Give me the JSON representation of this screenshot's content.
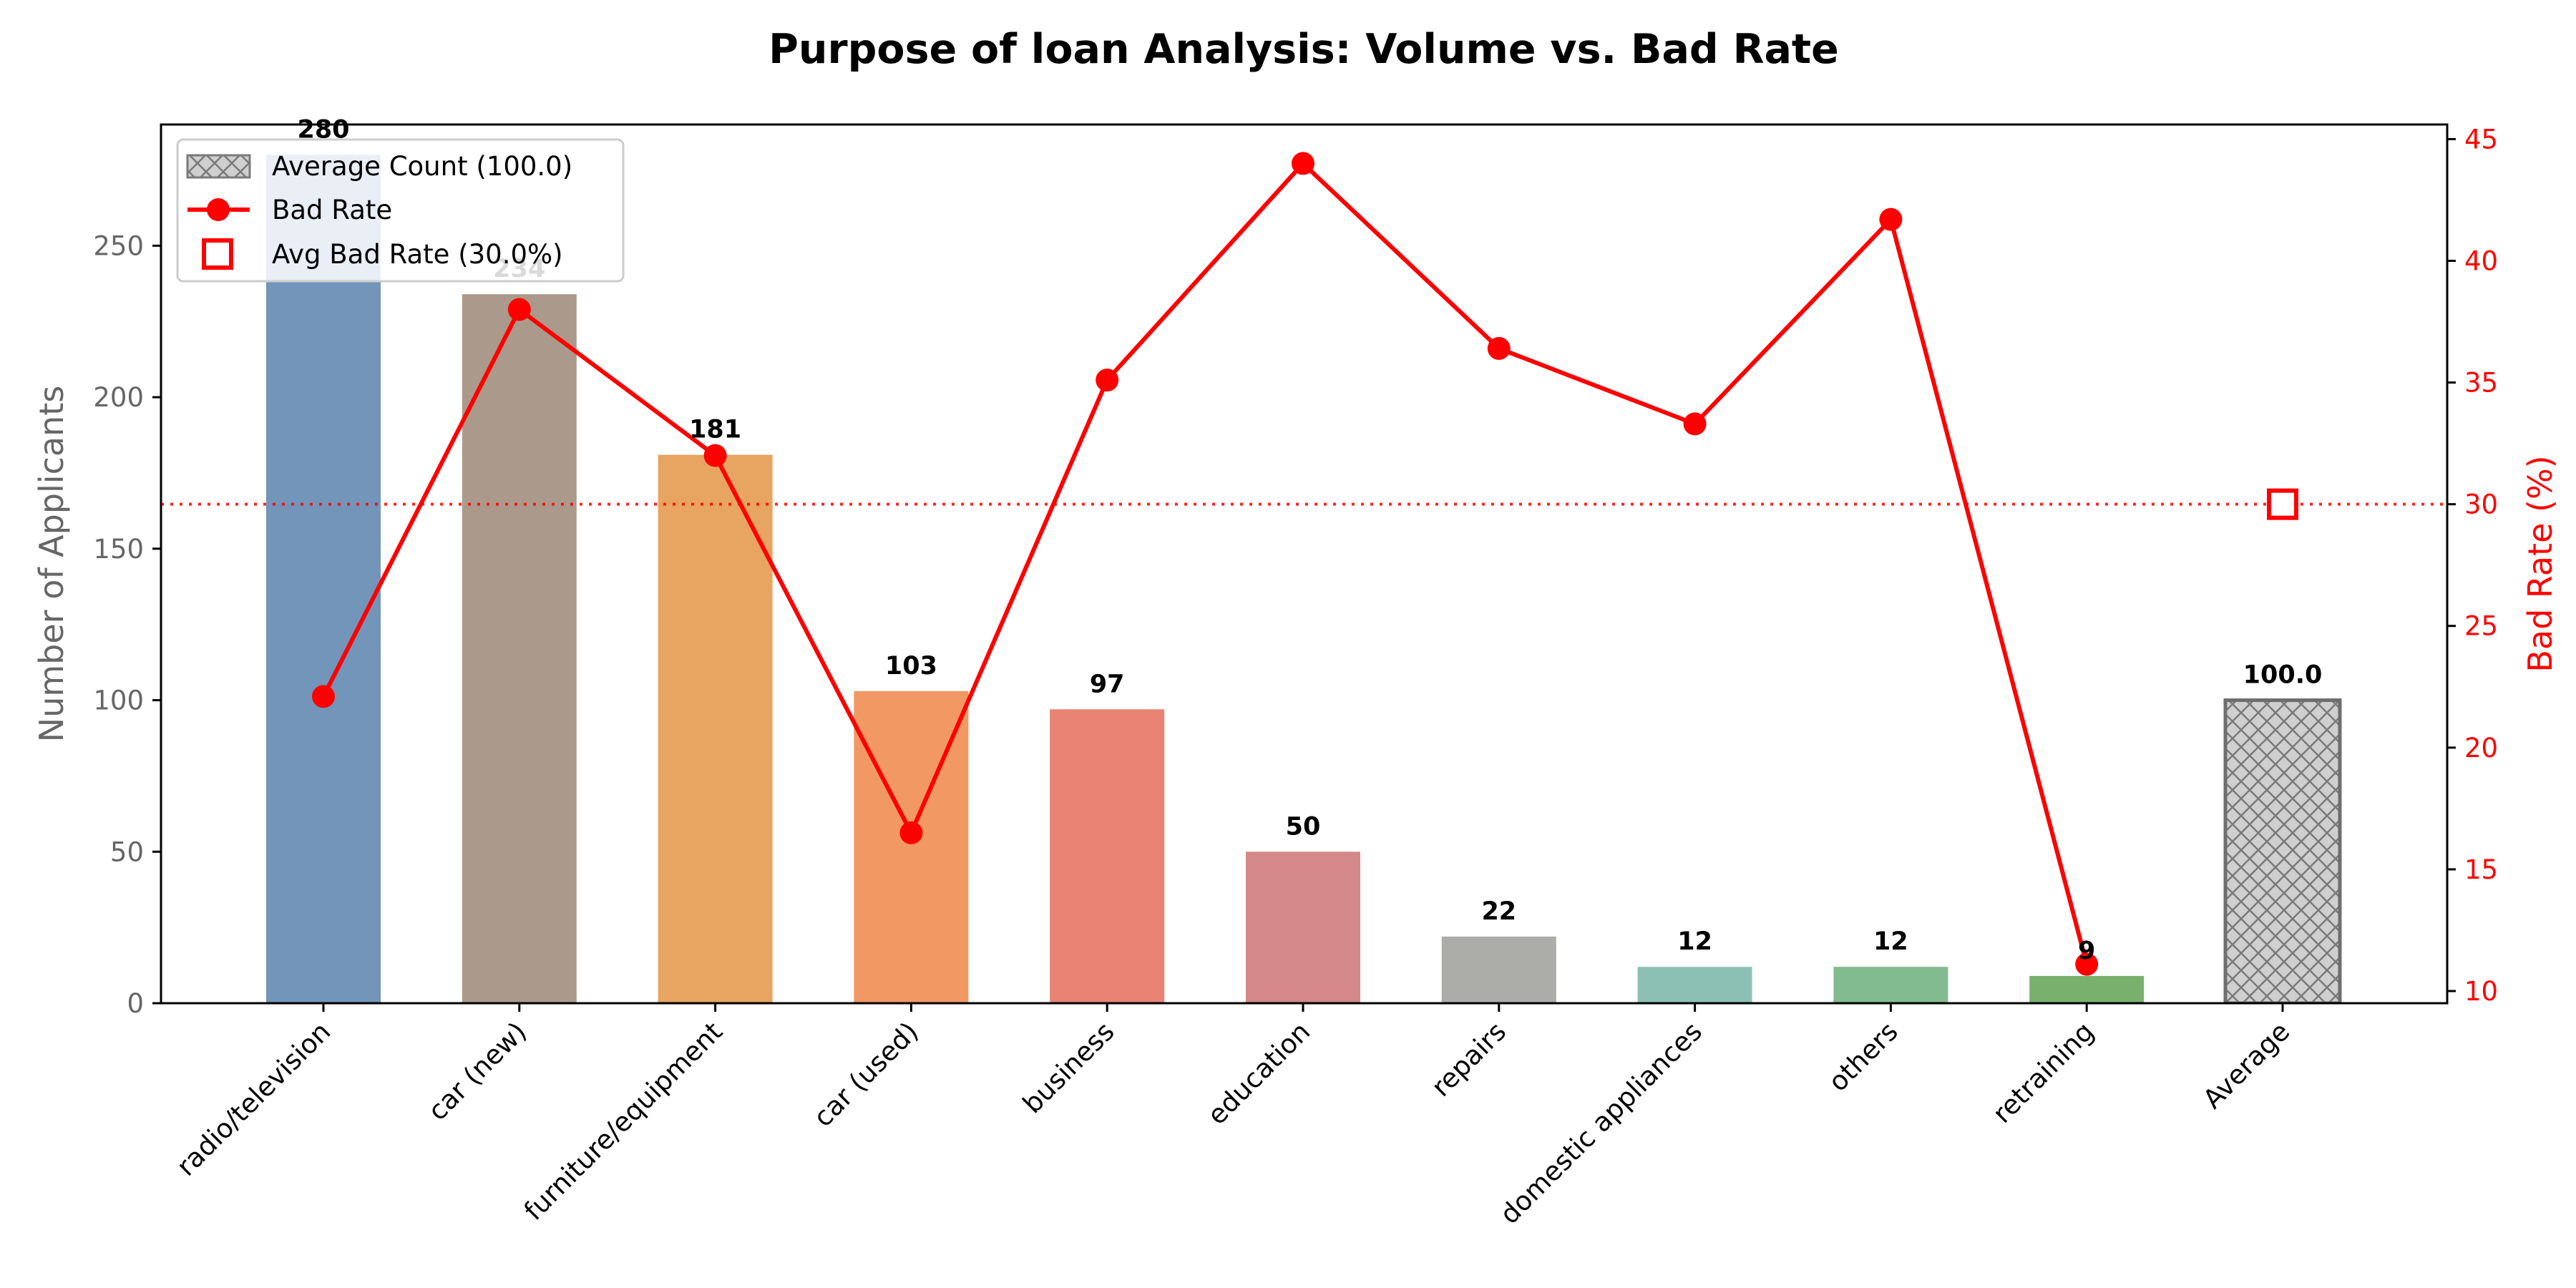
{
  "chart_data": {
    "type": "bar",
    "title": "Purpose of loan Analysis: Volume vs. Bad Rate",
    "ylabel": "Number of Applicants",
    "y2label": "Bad Rate (%)",
    "categories": [
      "radio/television",
      "car (new)",
      "furniture/equipment",
      "car (used)",
      "business",
      "education",
      "repairs",
      "domestic appliances",
      "others",
      "retraining",
      "Average"
    ],
    "series": [
      {
        "name": "Number of Applicants",
        "type": "bar",
        "axis": "left",
        "values": [
          280,
          234,
          181,
          103,
          97,
          50,
          22,
          12,
          12,
          9,
          100.0
        ],
        "labels": [
          "280",
          "234",
          "181",
          "103",
          "97",
          "50",
          "22",
          "12",
          "12",
          "9",
          "100.0"
        ],
        "colors": [
          "#7295b9",
          "#ab9a8b",
          "#e8a461",
          "#f29863",
          "#e88273",
          "#d48888",
          "#acaca8",
          "#8dc0b5",
          "#82bb90",
          "#79b06e",
          "#cfcfcf"
        ]
      },
      {
        "name": "Bad Rate",
        "type": "line",
        "axis": "right",
        "color": "#ff0000",
        "x": [
          "radio/television",
          "car (new)",
          "furniture/equipment",
          "car (used)",
          "business",
          "education",
          "repairs",
          "domestic appliances",
          "others",
          "retraining"
        ],
        "values": [
          22.1,
          38.0,
          32.0,
          16.5,
          35.1,
          44.0,
          36.4,
          33.3,
          41.7,
          11.1
        ]
      }
    ],
    "average": {
      "count": 100.0,
      "bad_rate": 30.0
    },
    "ylim": [
      0,
      290
    ],
    "y2lim": [
      9.5,
      45.6
    ],
    "yticks": [
      0,
      50,
      100,
      150,
      200,
      250
    ],
    "y2ticks": [
      10,
      15,
      20,
      25,
      30,
      35,
      40,
      45
    ],
    "grid": false,
    "legend": {
      "position": "top-left",
      "entries": [
        "Average Count (100.0)",
        "Bad Rate",
        "Avg Bad Rate (30.0%)"
      ]
    }
  }
}
